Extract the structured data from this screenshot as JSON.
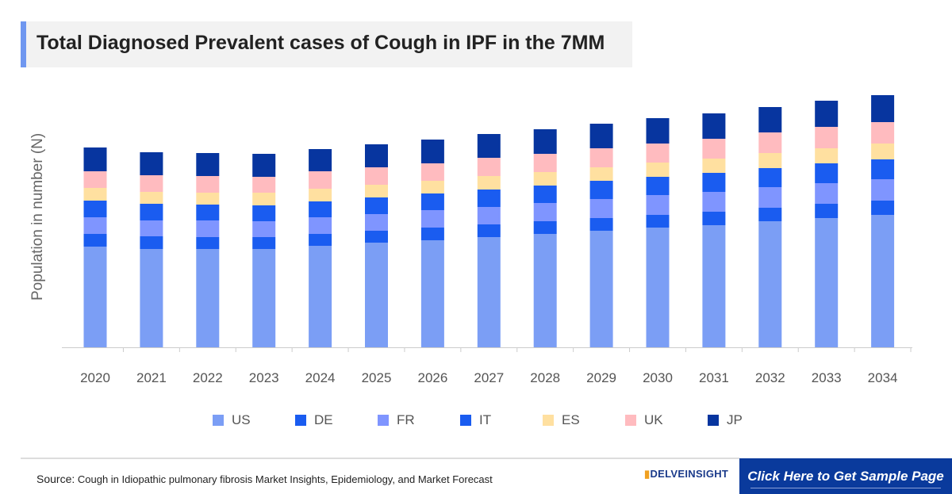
{
  "chart_data": {
    "type": "stacked-bar",
    "title": "Total Diagnosed Prevalent cases of Cough in IPF in the 7MM",
    "xlabel": "",
    "ylabel": "Population in number (N)",
    "y_ticks_shown": false,
    "grid": false,
    "legend_position": "bottom",
    "ylim": [
      0,
      338
    ],
    "categories": [
      "2020",
      "2021",
      "2022",
      "2023",
      "2024",
      "2025",
      "2026",
      "2027",
      "2028",
      "2029",
      "2030",
      "2031",
      "2032",
      "2033",
      "2034"
    ],
    "series": [
      {
        "name": "US",
        "color": "#7B9EF5",
        "values": [
          127,
          124,
          124,
          124,
          128,
          132,
          135,
          139,
          143,
          147,
          151,
          154,
          159,
          163,
          167
        ]
      },
      {
        "name": "DE",
        "color": "#1A5CF0",
        "values": [
          16,
          16,
          15,
          15,
          15,
          15,
          16,
          16,
          16,
          16,
          16,
          17,
          17,
          18,
          18
        ]
      },
      {
        "name": "FR",
        "color": "#7F95FF",
        "values": [
          21,
          20,
          21,
          20,
          21,
          21,
          22,
          22,
          23,
          24,
          25,
          25,
          26,
          26,
          27
        ]
      },
      {
        "name": "IT",
        "color": "#1A5CF0",
        "values": [
          21,
          21,
          20,
          20,
          20,
          21,
          21,
          22,
          22,
          23,
          23,
          24,
          24,
          25,
          25
        ]
      },
      {
        "name": "ES",
        "color": "#FFE0A0",
        "values": [
          16,
          15,
          15,
          16,
          16,
          16,
          16,
          17,
          17,
          17,
          18,
          18,
          19,
          19,
          20
        ]
      },
      {
        "name": "UK",
        "color": "#FFBBBF",
        "values": [
          21,
          21,
          21,
          20,
          22,
          22,
          22,
          23,
          23,
          24,
          24,
          25,
          26,
          27,
          27
        ]
      },
      {
        "name": "JP",
        "color": "#07359F",
        "values": [
          30,
          29,
          29,
          29,
          28,
          29,
          30,
          30,
          31,
          31,
          32,
          32,
          32,
          33,
          34
        ]
      }
    ]
  },
  "footer": {
    "source_label": "Source:",
    "source_text": "Cough in Idiopathic pulmonary fibrosis Market Insights, Epidemiology, and Market Forecast",
    "logo_text": "DELVEINSIGHT",
    "cta_label": "Click Here to Get Sample Page"
  }
}
